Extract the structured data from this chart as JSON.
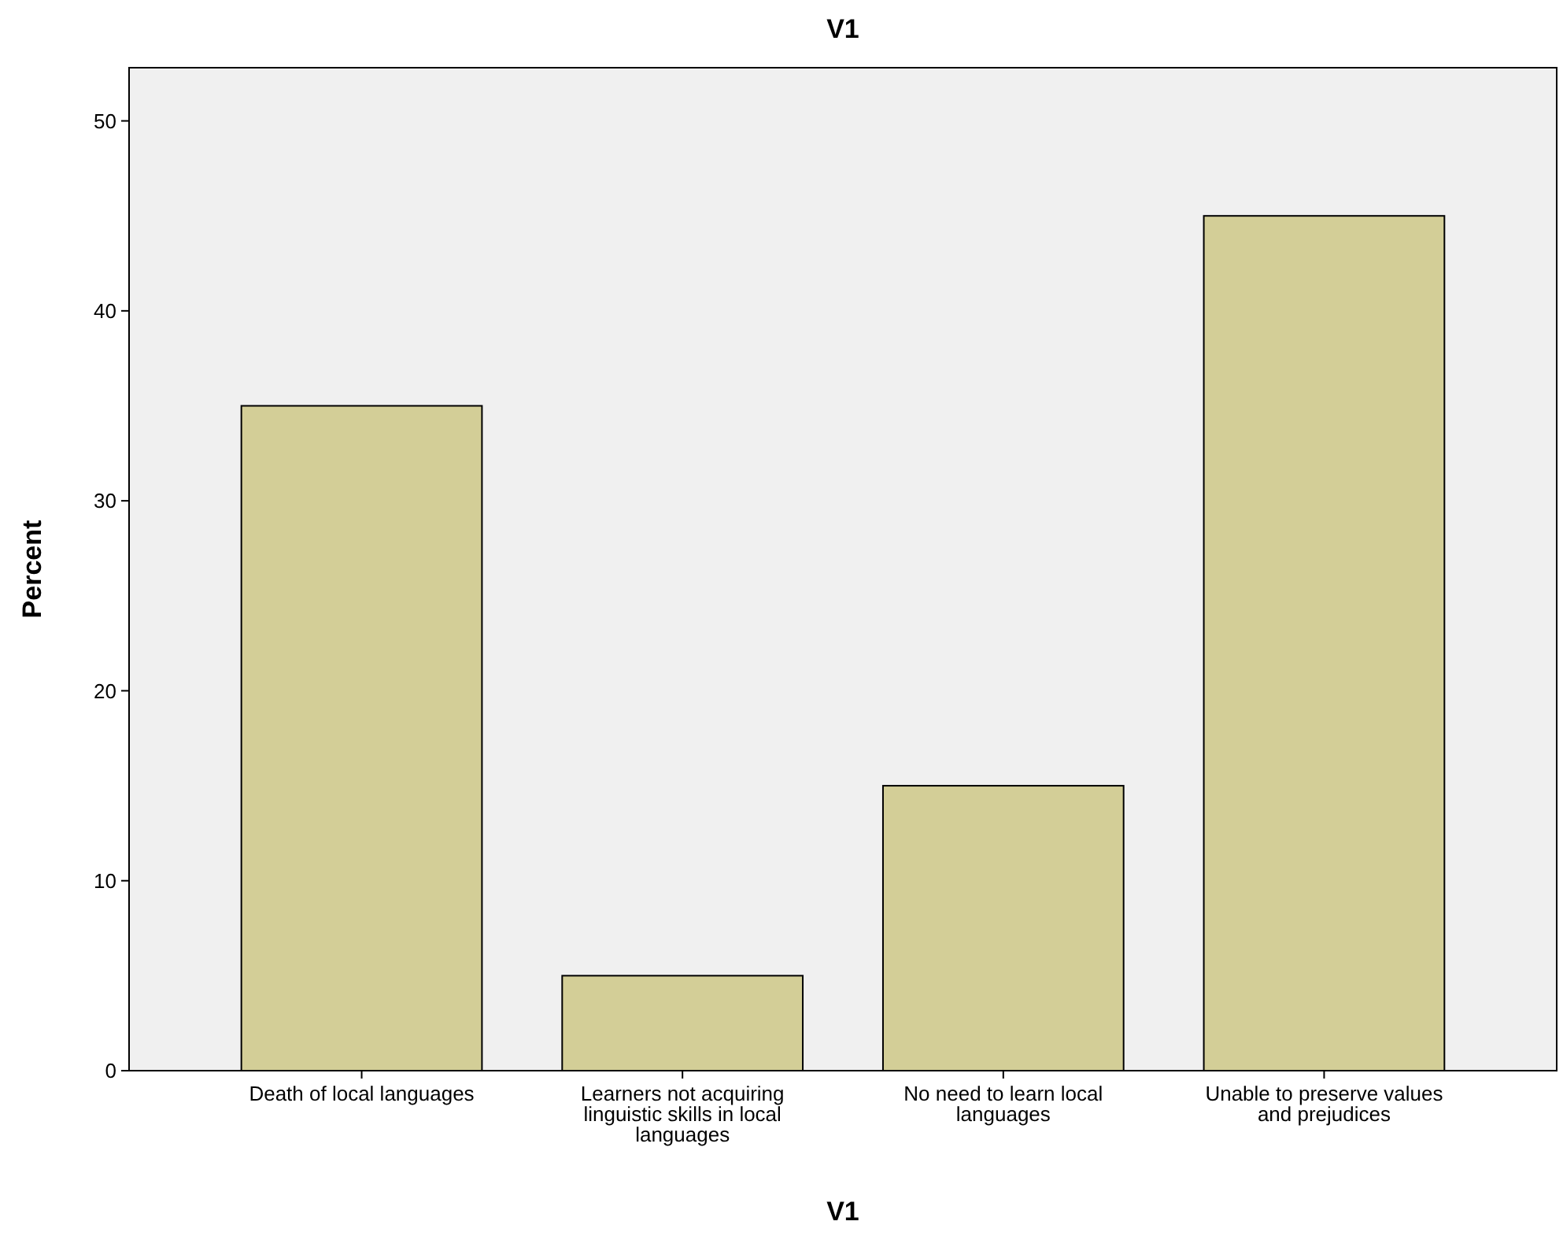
{
  "chart_data": {
    "type": "bar",
    "title": "V1",
    "xlabel": "V1",
    "ylabel": "Percent",
    "categories": [
      "Death of local languages",
      "Learners not acquiring linguistic skills in local languages",
      "No need to learn local languages",
      "Unable to preserve values and prejudices"
    ],
    "values": [
      35,
      5,
      15,
      45
    ],
    "color": "#d3ce97",
    "ylim": [
      0,
      52.8
    ],
    "yticks": [
      0,
      10,
      20,
      30,
      40,
      50
    ],
    "grid": false
  }
}
